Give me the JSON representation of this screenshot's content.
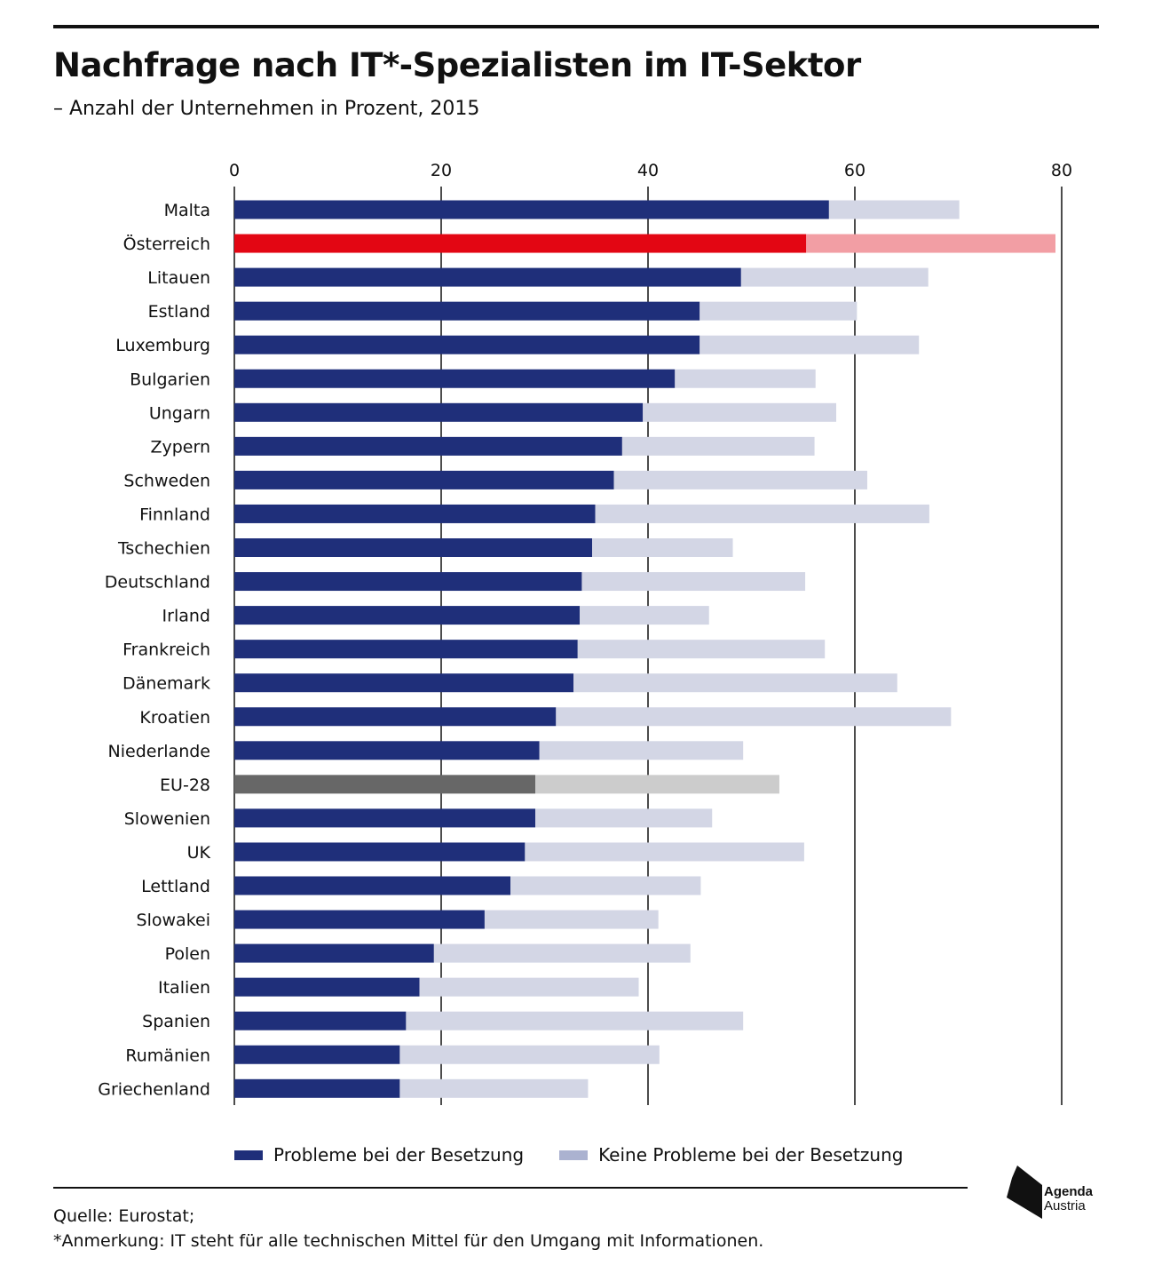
{
  "header": {
    "title": "Nachfrage nach IT*-Spezialisten im IT-Sektor",
    "subtitle": "– Anzahl der Unternehmen in Prozent, 2015"
  },
  "chart_data": {
    "type": "bar",
    "orientation": "horizontal",
    "stacked": true,
    "xlim": [
      0,
      80
    ],
    "x_ticks": [
      0,
      20,
      40,
      60,
      80
    ],
    "grid": true,
    "legend_position": "bottom",
    "categories": [
      "Malta",
      "Österreich",
      "Litauen",
      "Estland",
      "Luxemburg",
      "Bulgarien",
      "Ungarn",
      "Zypern",
      "Schweden",
      "Finnland",
      "Tschechien",
      "Deutschland",
      "Irland",
      "Frankreich",
      "Dänemark",
      "Kroatien",
      "Niederlande",
      "EU-28",
      "Slowenien",
      "UK",
      "Lettland",
      "Slowakei",
      "Polen",
      "Italien",
      "Spanien",
      "Rumänien",
      "Griechenland"
    ],
    "series": [
      {
        "name": "Probleme bei der Besetzung",
        "color": "#1f2f7a",
        "values": [
          57.5,
          55.3,
          49,
          45,
          45,
          42.6,
          39.5,
          37.5,
          36.7,
          34.9,
          34.6,
          33.6,
          33.4,
          33.2,
          32.8,
          31.1,
          29.5,
          29.1,
          29.1,
          28.1,
          26.7,
          24.2,
          19.3,
          17.9,
          16.6,
          16,
          16
        ],
        "highlight": {
          "Österreich": "#e30613",
          "EU-28": "#676767"
        }
      },
      {
        "name": "Keine Probleme bei der Besetzung",
        "color": "#d3d6e5",
        "values": [
          12.6,
          24.1,
          18.1,
          15.2,
          21.2,
          13.6,
          18.7,
          18.6,
          24.5,
          32.3,
          13.6,
          21.6,
          12.5,
          23.9,
          31.3,
          38.2,
          19.7,
          23.6,
          17.1,
          27,
          18.4,
          16.8,
          24.8,
          21.2,
          32.6,
          25.1,
          18.2
        ],
        "highlight": {
          "Österreich": "#f29ea4",
          "EU-28": "#cccccc"
        }
      }
    ]
  },
  "legend": [
    {
      "label": "Probleme bei der Besetzung",
      "color": "#1f2f7a"
    },
    {
      "label": "Keine Probleme bei der Besetzung",
      "color": "#abb2d0"
    }
  ],
  "footer": {
    "source": "Quelle: Eurostat;",
    "note": "*Anmerkung: IT steht für alle technischen Mittel für den Umgang mit Informationen."
  },
  "logo": {
    "line1": "Agenda",
    "line2": "Austria"
  }
}
